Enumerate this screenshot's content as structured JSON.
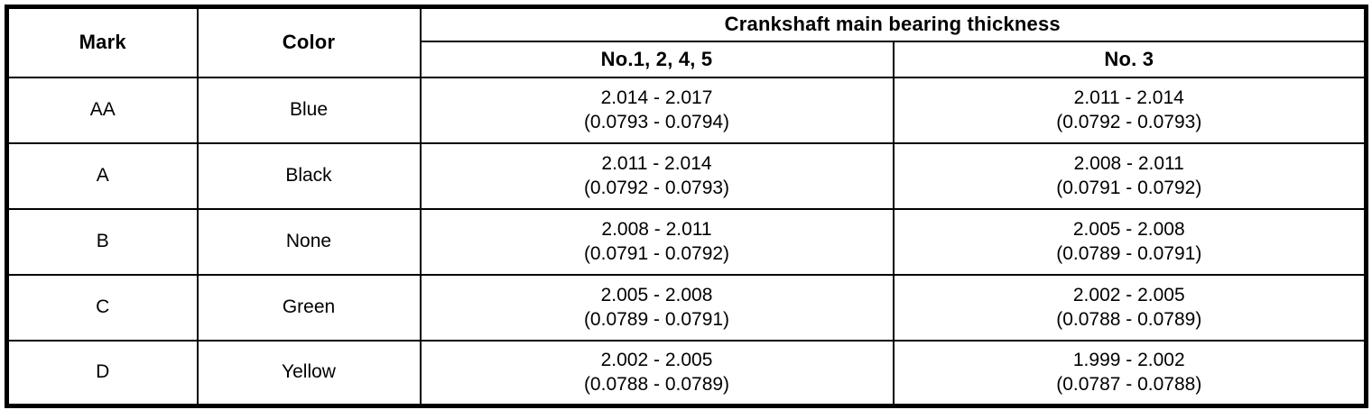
{
  "table": {
    "headers": {
      "mark": "Mark",
      "color": "Color",
      "thickness_group": "Crankshaft main bearing thickness",
      "col_no1245": "No.1, 2, 4, 5",
      "col_no3": "No. 3"
    },
    "rows": [
      {
        "mark": "AA",
        "color": "Blue",
        "no1245_mm": "2.014 - 2.017",
        "no1245_in": "(0.0793 - 0.0794)",
        "no3_mm": "2.011 - 2.014",
        "no3_in": "(0.0792 - 0.0793)"
      },
      {
        "mark": "A",
        "color": "Black",
        "no1245_mm": "2.011 - 2.014",
        "no1245_in": "(0.0792 - 0.0793)",
        "no3_mm": "2.008 - 2.011",
        "no3_in": "(0.0791 - 0.0792)"
      },
      {
        "mark": "B",
        "color": "None",
        "no1245_mm": "2.008 - 2.011",
        "no1245_in": "(0.0791 - 0.0792)",
        "no3_mm": "2.005 - 2.008",
        "no3_in": "(0.0789 - 0.0791)"
      },
      {
        "mark": "C",
        "color": "Green",
        "no1245_mm": "2.005 - 2.008",
        "no1245_in": "(0.0789 - 0.0791)",
        "no3_mm": "2.002 - 2.005",
        "no3_in": "(0.0788 - 0.0789)"
      },
      {
        "mark": "D",
        "color": "Yellow",
        "no1245_mm": "2.002 - 2.005",
        "no1245_in": "(0.0788 - 0.0789)",
        "no3_mm": "1.999 - 2.002",
        "no3_in": "(0.0787 - 0.0788)"
      }
    ],
    "colors": {
      "border": "#000000",
      "background": "#ffffff",
      "text": "#000000"
    }
  }
}
